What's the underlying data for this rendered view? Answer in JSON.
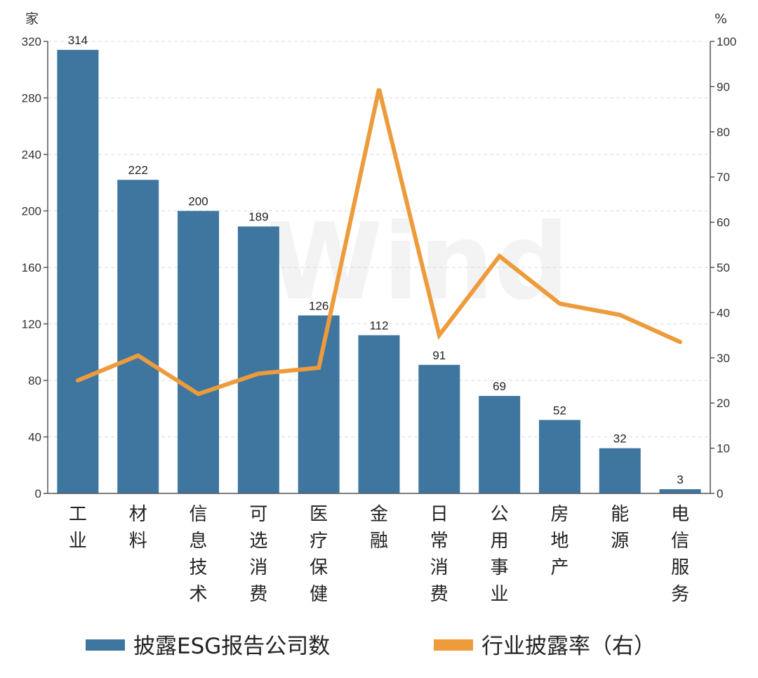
{
  "chart_data": {
    "type": "bar",
    "categories": [
      "工业",
      "材料",
      "信息技术",
      "可选消费",
      "医疗保健",
      "金融",
      "日常消费",
      "公用事业",
      "房地产",
      "能源",
      "电信服务"
    ],
    "series": [
      {
        "name": "披露ESG报告公司数",
        "type": "bar",
        "axis": "left",
        "color": "#3e76a0",
        "values": [
          314,
          222,
          200,
          189,
          126,
          112,
          91,
          69,
          52,
          32,
          3
        ]
      },
      {
        "name": "行业披露率（右）",
        "type": "line",
        "axis": "right",
        "color": "#ed9b3b",
        "values": [
          25,
          30.5,
          22,
          26.5,
          27.8,
          89.5,
          35,
          52.5,
          42,
          39.5,
          33.5
        ]
      }
    ],
    "left_axis": {
      "unit": "家",
      "ylim": [
        0,
        320
      ],
      "ticks": [
        0,
        40,
        80,
        120,
        160,
        200,
        240,
        280,
        320
      ]
    },
    "right_axis": {
      "unit": "%",
      "ylim": [
        0,
        100
      ],
      "ticks": [
        0,
        10,
        20,
        30,
        40,
        50,
        60,
        70,
        80,
        90,
        100
      ]
    },
    "grid": true,
    "legend": "bottom",
    "watermark": "Wind"
  }
}
